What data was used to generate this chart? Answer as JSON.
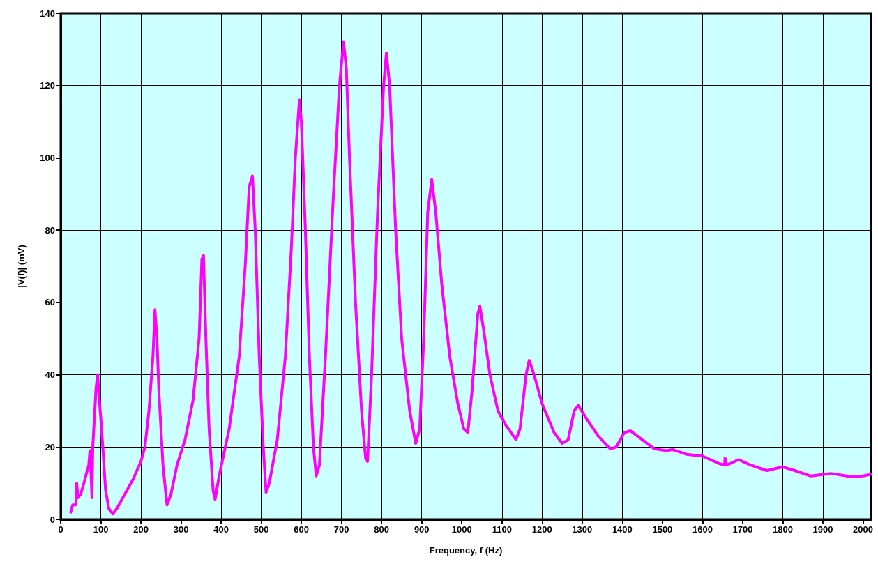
{
  "chart_data": {
    "type": "line",
    "xlabel": "Frequency, f (Hz)",
    "ylabel": "|V(f)| (mV)",
    "xlim": [
      0,
      2020
    ],
    "xticks": [
      0,
      100,
      200,
      300,
      400,
      500,
      600,
      700,
      800,
      900,
      1000,
      1100,
      1200,
      1300,
      1400,
      1500,
      1600,
      1700,
      1800,
      1900,
      2000
    ],
    "ylim": [
      0,
      140
    ],
    "yticks": [
      0,
      20,
      40,
      60,
      80,
      100,
      120,
      140
    ],
    "grid": true,
    "marker": "none",
    "line_style": "solid",
    "series": [
      {
        "color": "#ff00ff",
        "x": [
          25,
          30,
          38,
          40,
          43,
          50,
          58,
          65,
          70,
          73,
          76,
          78,
          80,
          88,
          92,
          95,
          100,
          105,
          112,
          120,
          130,
          140,
          160,
          180,
          200,
          210,
          220,
          230,
          235,
          240,
          245,
          255,
          265,
          275,
          290,
          310,
          330,
          345,
          352,
          356,
          362,
          370,
          380,
          385,
          395,
          420,
          445,
          460,
          470,
          478,
          485,
          495,
          505,
          512,
          520,
          540,
          560,
          575,
          585,
          595,
          600,
          610,
          620,
          630,
          637,
          645,
          660,
          680,
          695,
          705,
          712,
          720,
          735,
          750,
          760,
          765,
          775,
          790,
          805,
          812,
          820,
          835,
          850,
          870,
          885,
          895,
          905,
          915,
          925,
          935,
          950,
          970,
          990,
          1005,
          1015,
          1025,
          1040,
          1045,
          1055,
          1070,
          1090,
          1110,
          1135,
          1145,
          1160,
          1168,
          1180,
          1200,
          1230,
          1250,
          1265,
          1280,
          1290,
          1310,
          1340,
          1370,
          1385,
          1405,
          1420,
          1450,
          1480,
          1510,
          1525,
          1560,
          1600,
          1640,
          1655,
          1656,
          1660,
          1680,
          1690,
          1720,
          1760,
          1800,
          1830,
          1870,
          1920,
          1970,
          2000,
          2020
        ],
        "values": [
          2,
          4,
          4,
          10,
          6,
          7,
          10,
          13,
          15,
          19,
          12,
          6,
          20,
          36,
          40,
          35,
          28,
          20,
          8,
          3,
          1.5,
          3,
          7,
          11,
          16,
          20,
          30,
          45,
          58,
          50,
          35,
          15,
          4,
          7,
          15,
          22,
          33,
          50,
          72,
          73,
          50,
          25,
          8,
          5.5,
          12,
          25,
          45,
          70,
          92,
          95,
          80,
          45,
          20,
          7.5,
          10,
          22,
          45,
          75,
          100,
          116,
          110,
          80,
          45,
          20,
          12,
          15,
          45,
          90,
          120,
          132,
          125,
          100,
          60,
          30,
          17,
          16,
          40,
          85,
          120,
          129,
          120,
          80,
          50,
          30,
          21,
          25,
          50,
          85,
          94,
          85,
          65,
          45,
          32,
          25,
          24,
          35,
          57,
          59,
          52,
          40,
          30,
          26,
          22,
          25,
          40,
          44,
          40,
          32,
          24,
          21,
          22,
          30,
          31.5,
          28,
          23,
          19.5,
          20,
          24,
          24.5,
          22,
          19.5,
          19,
          19.3,
          18,
          17.5,
          15.5,
          15,
          17,
          15,
          16,
          16.5,
          15,
          13.5,
          14.5,
          13.5,
          12,
          12.7,
          11.8,
          12,
          12.5
        ]
      }
    ]
  }
}
